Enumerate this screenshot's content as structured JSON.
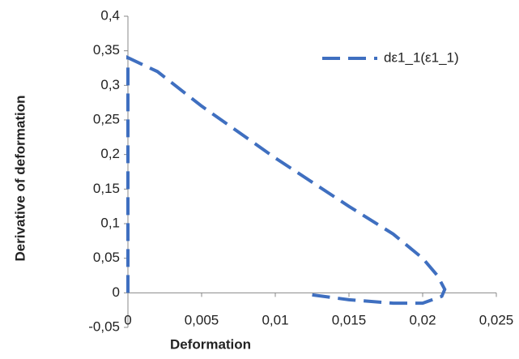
{
  "chart_data": {
    "type": "line",
    "xlabel": "Deformation",
    "ylabel": "Derivative of deformation",
    "x": [
      0,
      0,
      0,
      0,
      0,
      0.002,
      0.005,
      0.01,
      0.015,
      0.018,
      0.02,
      0.021,
      0.0215,
      0.0213,
      0.02,
      0.018,
      0.015,
      0.0125
    ],
    "series": [
      {
        "name": "dε1_1(ε1_1)",
        "color": "#3f6fc0",
        "dashed": true,
        "values": [
          0,
          0.1,
          0.2,
          0.3,
          0.34,
          0.32,
          0.27,
          0.195,
          0.125,
          0.085,
          0.05,
          0.025,
          0.005,
          -0.005,
          -0.015,
          -0.015,
          -0.01,
          -0.003
        ]
      }
    ],
    "xlim": [
      0,
      0.025
    ],
    "xticks": [
      0,
      {
        "value": 0.005,
        "label": "0,005"
      },
      {
        "value": 0.01,
        "label": "0,01"
      },
      {
        "value": 0.015,
        "label": "0,015"
      },
      {
        "value": 0.02,
        "label": "0,02"
      },
      {
        "value": 0.025,
        "label": "0,025"
      }
    ],
    "ylim": [
      -0.05,
      0.4
    ],
    "yticks": [
      {
        "value": -0.05,
        "label": "-0,05"
      },
      0,
      {
        "value": 0.05,
        "label": "0,05"
      },
      {
        "value": 0.1,
        "label": "0,1"
      },
      {
        "value": 0.15,
        "label": "0,15"
      },
      {
        "value": 0.2,
        "label": "0,2"
      },
      {
        "value": 0.25,
        "label": "0,25"
      },
      {
        "value": 0.3,
        "label": "0,3"
      },
      {
        "value": 0.35,
        "label": "0,35"
      },
      {
        "value": 0.4,
        "label": "0,4"
      }
    ],
    "grid": false,
    "legend": "upper right"
  }
}
